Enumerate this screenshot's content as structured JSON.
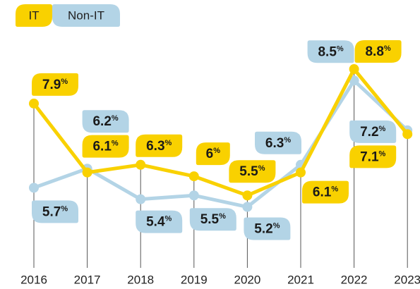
{
  "chart_data": {
    "type": "line",
    "categories": [
      "2016",
      "2017",
      "2018",
      "2019",
      "2020",
      "2021",
      "2022",
      "2023"
    ],
    "series": [
      {
        "name": "IT",
        "color": "#f9d100",
        "values": [
          7.9,
          6.1,
          6.3,
          6,
          5.5,
          6.1,
          8.8,
          7.1
        ],
        "value_labels": [
          "7.9%",
          "6.1%",
          "6.3%",
          "6%",
          "5.5%",
          "6.1%",
          "8.8%",
          "7.1%"
        ]
      },
      {
        "name": "Non-IT",
        "color": "#b3d4e6",
        "values": [
          5.7,
          6.2,
          5.4,
          5.5,
          5.2,
          6.3,
          8.5,
          7.2
        ],
        "value_labels": [
          "5.7%",
          "6.2%",
          "5.4%",
          "5.5%",
          "5.2%",
          "6.3%",
          "8.5%",
          "7.2%"
        ]
      }
    ],
    "ylim": [
      3.7,
      9.5
    ]
  }
}
